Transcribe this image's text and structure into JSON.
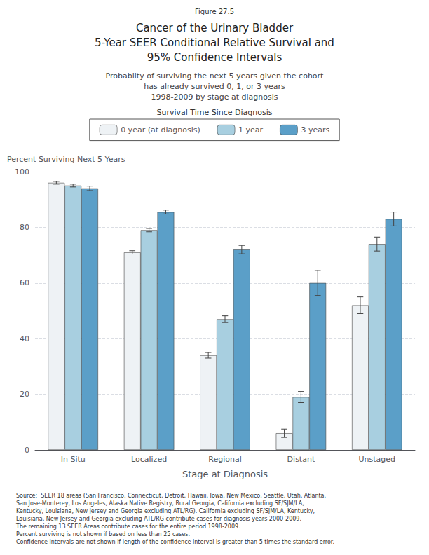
{
  "chart_data": {
    "type": "bar",
    "figure_label": "Figure 27.5",
    "title": [
      "Cancer of the Urinary Bladder",
      "5-Year SEER Conditional Relative Survival and",
      "95% Confidence Intervals"
    ],
    "subtitle": [
      "Probabilty of surviving the next 5 years given the cohort",
      "has already survived 0, 1, or 3 years",
      "1998-2009 by stage at diagnosis"
    ],
    "legend_title": "Survival Time Since Diagnosis",
    "legend": "top",
    "xlabel": "Stage at Diagnosis",
    "ylabel": "Percent Surviving Next 5 Years",
    "categories": [
      "In Situ",
      "Localized",
      "Regional",
      "Distant",
      "Unstaged"
    ],
    "series": [
      {
        "name": "0 year (at diagnosis)",
        "color": "#eef2f5",
        "values": [
          96.0,
          71.0,
          34.0,
          6.0,
          52.0
        ],
        "errors": [
          0.5,
          0.6,
          1.0,
          1.5,
          3.0
        ]
      },
      {
        "name": "1 year",
        "color": "#a8cfe0",
        "values": [
          95.0,
          79.0,
          47.0,
          19.0,
          74.0
        ],
        "errors": [
          0.5,
          0.6,
          1.2,
          2.0,
          2.5
        ]
      },
      {
        "name": "3 years",
        "color": "#5b9fc8",
        "values": [
          94.0,
          85.5,
          72.0,
          60.0,
          83.0
        ],
        "errors": [
          0.8,
          0.7,
          1.5,
          4.5,
          2.5
        ]
      }
    ],
    "ylim": [
      0,
      100
    ],
    "yticks": [
      0,
      20,
      40,
      60,
      80,
      100
    ],
    "grid": true,
    "footnote": [
      "Source:  SEER 18 areas (San Francisco, Connecticut, Detroit, Hawaii, Iowa, New Mexico, Seattle, Utah, Atlanta,",
      "San Jose-Monterey, Los Angeles, Alaska Native Registry, Rural Georgia, California excluding SF/SJM/LA,",
      "Kentucky, Louisiana, New Jersey and Georgia excluding ATL/RG). California excluding SF/SJM/LA, Kentucky,",
      "Louisiana, New Jersey and Georgia excluding ATL/RG contribute cases for diagnosis years 2000-2009.",
      "The remaining 13 SEER Areas contribute cases for the entire period 1998-2009.",
      "Percent surviving is not shown if based on less than 25 cases.",
      "Confidence intervals are not shown if length of the confidence interval is greater than 5 times the standard error."
    ]
  }
}
